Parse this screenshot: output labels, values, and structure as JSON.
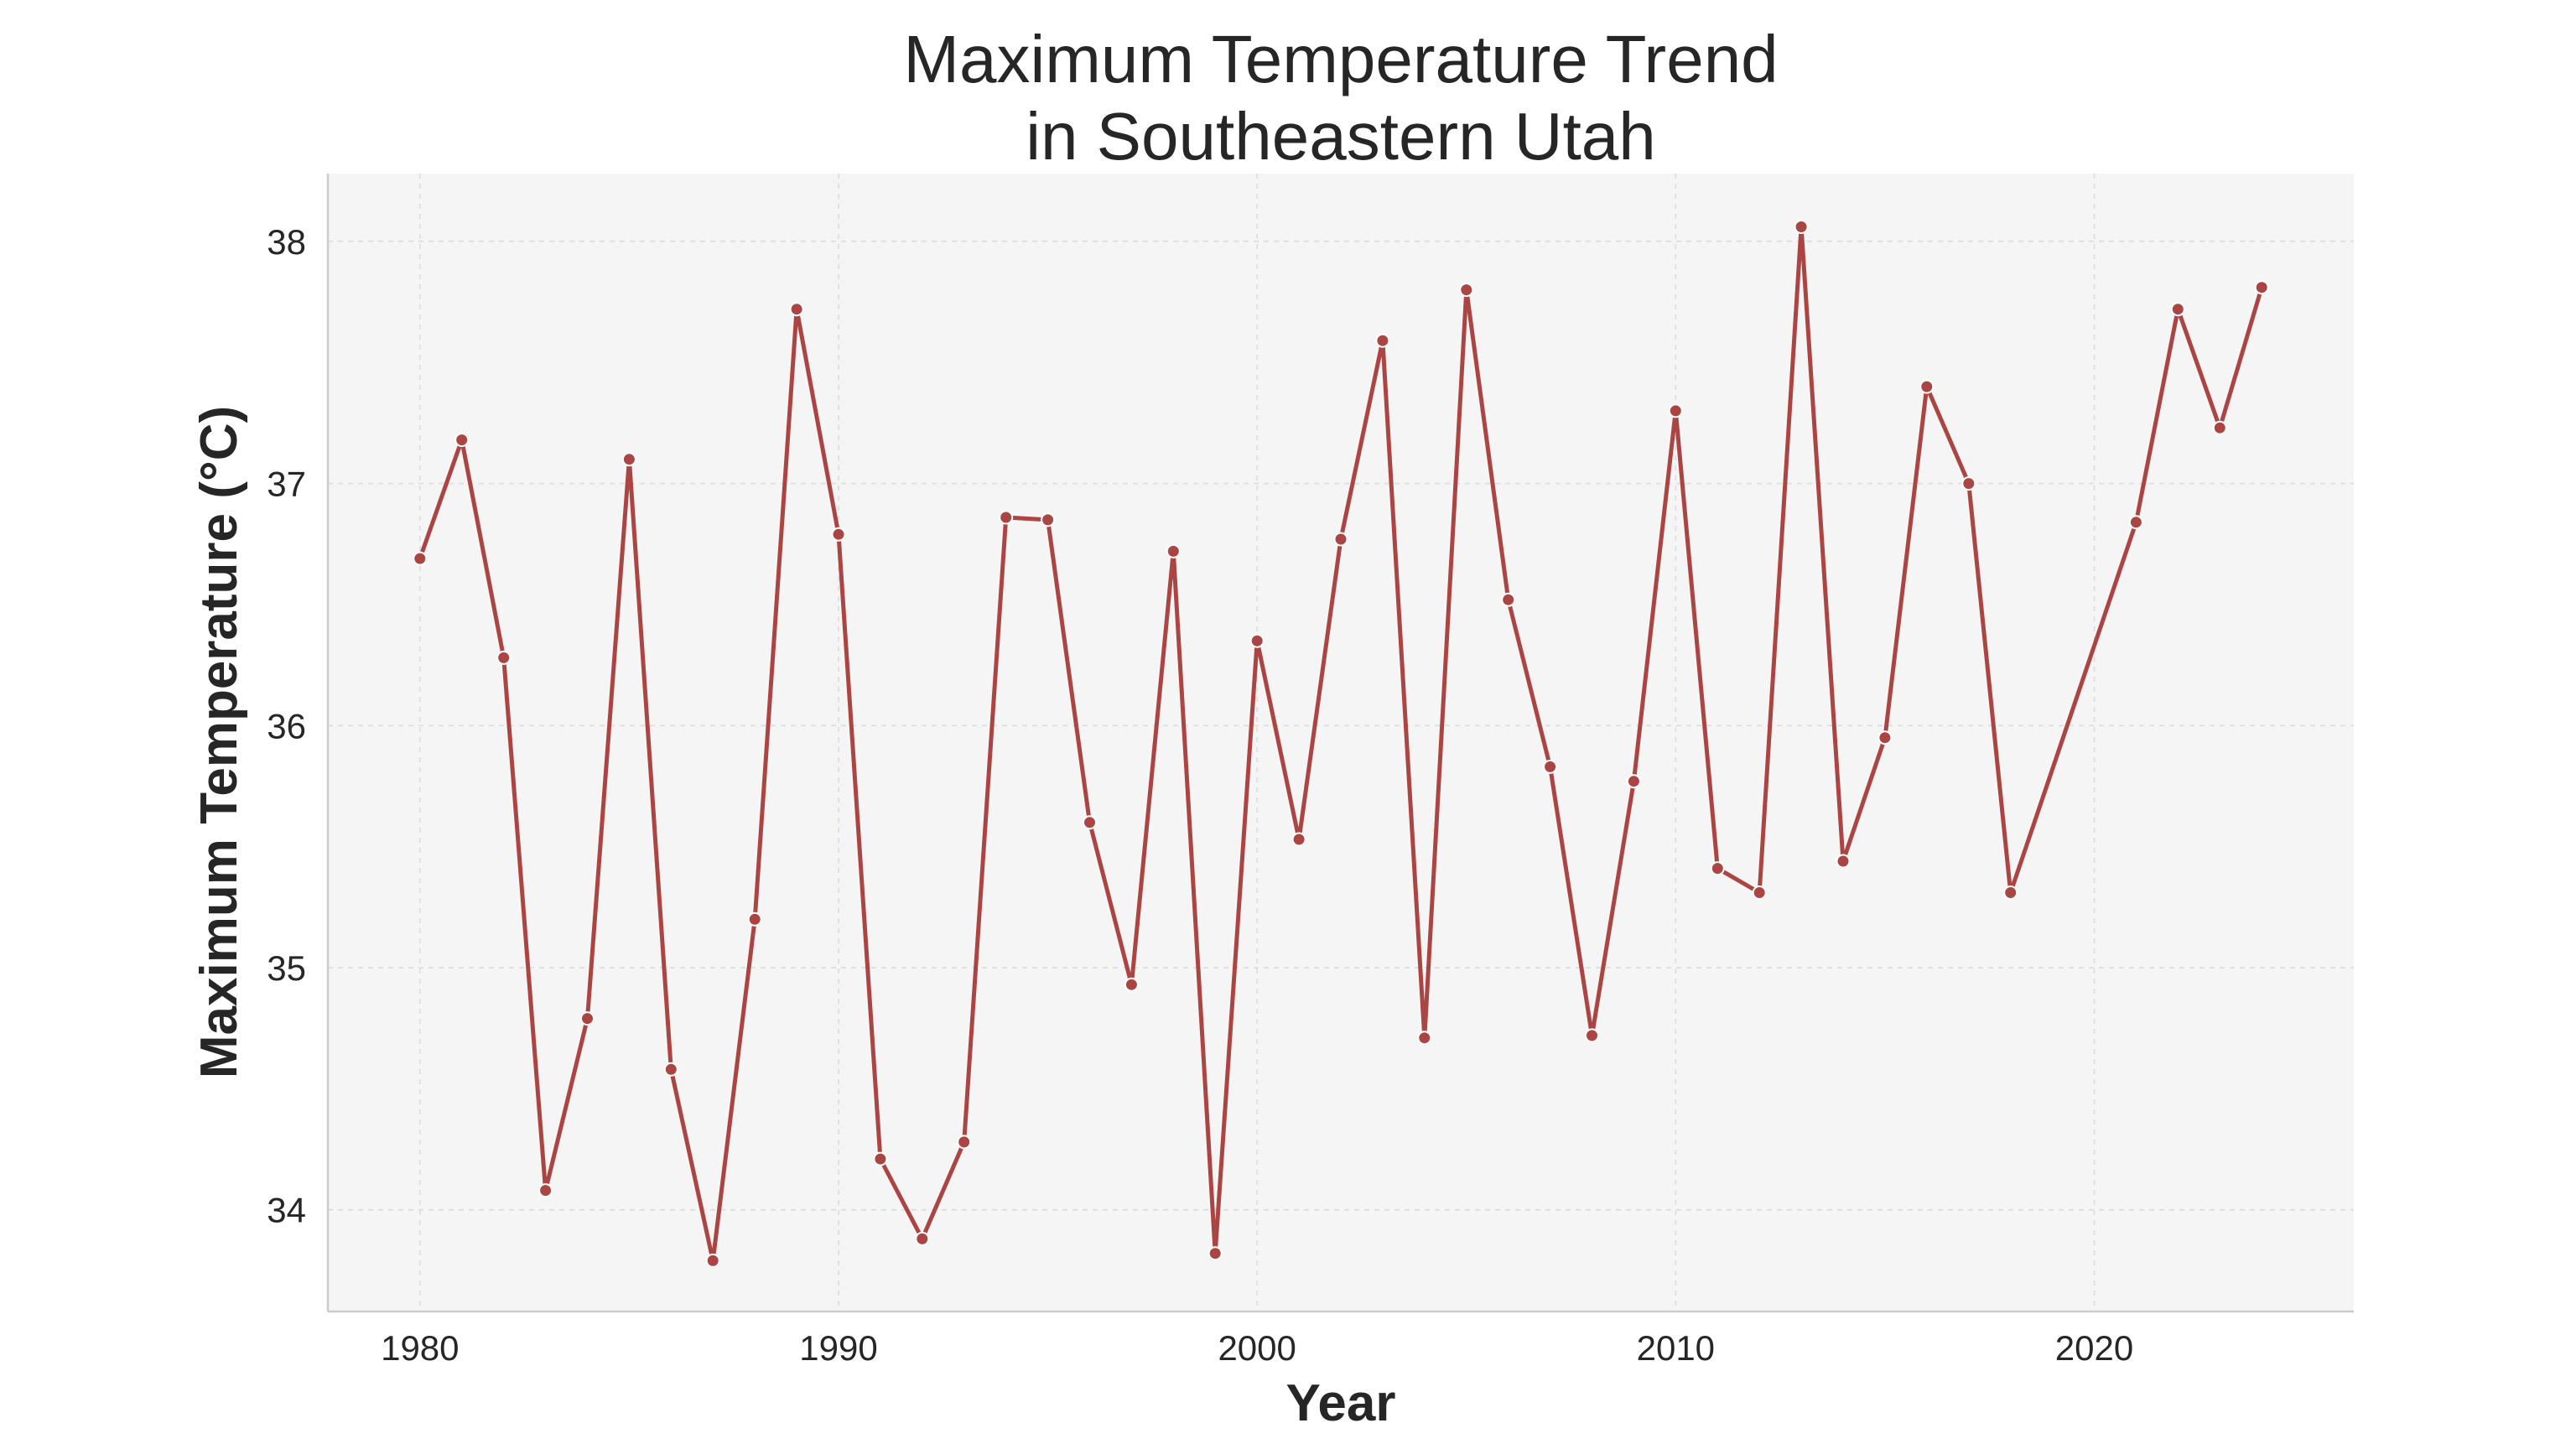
{
  "chart_data": {
    "type": "line",
    "title": [
      "Maximum Temperature Trend",
      "in Southeastern Utah"
    ],
    "xlabel": "Year",
    "ylabel": "Maximum Temperature (°C)",
    "xlim": [
      1977.8,
      2026.2
    ],
    "ylim": [
      33.58,
      38.28
    ],
    "x_ticks": [
      1980,
      1990,
      2000,
      2010,
      2020
    ],
    "y_ticks": [
      34,
      35,
      36,
      37,
      38
    ],
    "grid": true,
    "legend": false,
    "colors": {
      "line": "#ab4543",
      "background": "#f5f5f5",
      "grid": "#dcdcdc",
      "axis": "#cccccc"
    },
    "series": [
      {
        "x": [
          1980,
          1981,
          1982,
          1983,
          1984,
          1985,
          1986,
          1987,
          1988,
          1989,
          1990,
          1991,
          1992,
          1993,
          1994,
          1995,
          1996,
          1997,
          1998,
          1999,
          2000,
          2001,
          2002,
          2003,
          2004,
          2005,
          2006,
          2007,
          2008,
          2009,
          2010,
          2011,
          2012,
          2013,
          2014,
          2015,
          2016,
          2017,
          2018,
          2021,
          2022,
          2023,
          2024
        ],
        "values": [
          36.69,
          37.18,
          36.28,
          34.08,
          34.79,
          37.1,
          34.58,
          33.79,
          35.2,
          37.72,
          36.79,
          34.21,
          33.88,
          34.28,
          36.86,
          36.85,
          35.6,
          34.93,
          36.72,
          33.82,
          36.35,
          35.53,
          36.77,
          37.59,
          34.71,
          37.8,
          36.52,
          35.83,
          34.72,
          35.77,
          37.3,
          35.41,
          35.31,
          38.06,
          35.44,
          35.95,
          37.4,
          37.0,
          35.31,
          36.84,
          37.72,
          37.23,
          37.81
        ]
      }
    ]
  }
}
